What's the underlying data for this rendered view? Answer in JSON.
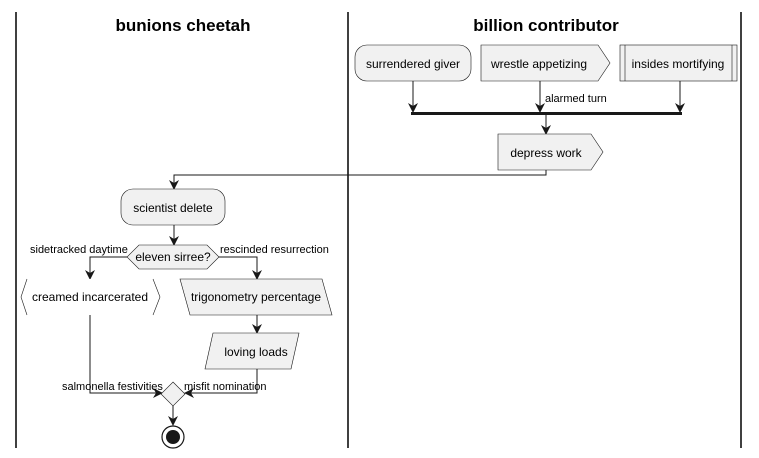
{
  "lanes": {
    "left_title": "bunions cheetah",
    "right_title": "billion contributor"
  },
  "nodes": {
    "surrendered_giver": "surrendered giver",
    "wrestle_appetizing": "wrestle appetizing",
    "insides_mortifying": "insides mortifying",
    "depress_work": "depress work",
    "scientist_delete": "scientist delete",
    "eleven_sirree": "eleven sirree?",
    "creamed_incarcerated": "creamed incarcerated",
    "trigonometry_percentage": "trigonometry percentage",
    "loving_loads": "loving loads"
  },
  "edge_labels": {
    "alarmed_turn": "alarmed turn",
    "sidetracked_daytime": "sidetracked daytime",
    "rescinded_resurrection": "rescinded resurrection",
    "salmonella_festivities": "salmonella festivities",
    "misfit_nomination": "misfit nomination"
  },
  "colors": {
    "node_fill": "#f1f1f1",
    "stroke": "#181818"
  }
}
